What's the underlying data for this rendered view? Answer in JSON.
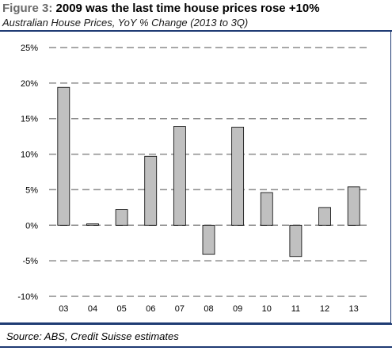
{
  "header": {
    "figure_label": "Figure 3:",
    "title": "2009 was the last time house prices rose +10%",
    "subtitle": "Australian House Prices, YoY % Change (2013 to 3Q)"
  },
  "footer": {
    "source": "Source: ABS, Credit Suisse estimates"
  },
  "colors": {
    "bar_fill": "#c0c0c0",
    "bar_stroke": "#000000",
    "grid": "#8c8c8c",
    "rule": "#1f3b73",
    "figure_label": "#6b6b6b"
  },
  "chart_data": {
    "type": "bar",
    "title": "2009 was the last time house prices rose +10%",
    "subtitle": "Australian House Prices, YoY % Change (2013 to 3Q)",
    "xlabel": "",
    "ylabel": "",
    "categories": [
      "03",
      "04",
      "05",
      "06",
      "07",
      "08",
      "09",
      "10",
      "11",
      "12",
      "13"
    ],
    "values": [
      19.4,
      0.2,
      2.2,
      9.7,
      13.9,
      -4.1,
      13.8,
      4.6,
      -4.4,
      2.5,
      5.4
    ],
    "ylim": [
      -10,
      25
    ],
    "yticks": [
      -10,
      -5,
      0,
      5,
      10,
      15,
      20,
      25
    ],
    "ytick_labels": [
      "-10%",
      "-5%",
      "0%",
      "5%",
      "10%",
      "15%",
      "20%",
      "25%"
    ],
    "grid": true,
    "grid_style": "dashed",
    "legend": "none"
  }
}
